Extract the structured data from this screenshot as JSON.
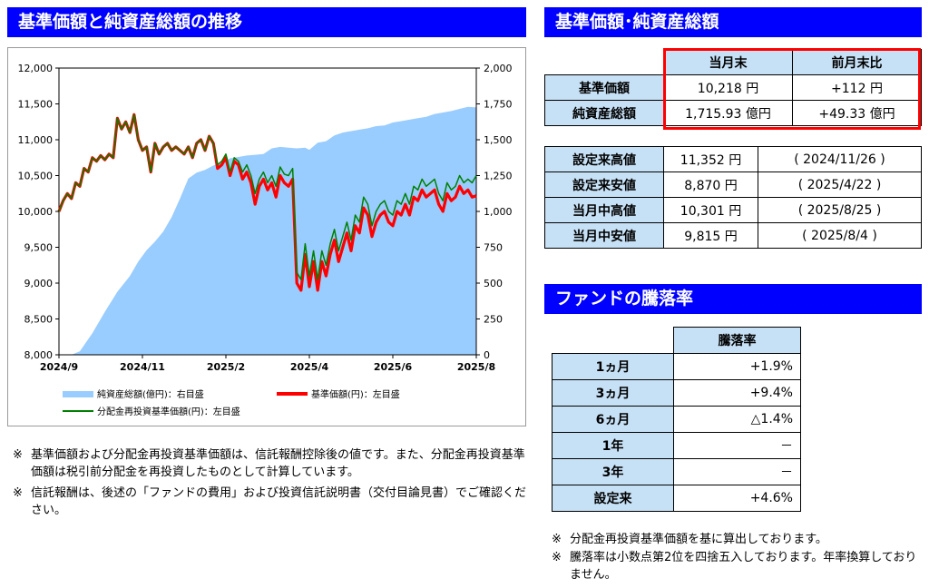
{
  "headers": {
    "chart": "基準価額と純資産総額の推移",
    "nav": "基準価額･純資産総額",
    "performance": "ファンドの騰落率"
  },
  "chart_data": {
    "type": "line",
    "x_tick_labels": [
      "2024/9",
      "2024/11",
      "2025/2",
      "2025/4",
      "2025/6",
      "2025/8"
    ],
    "y_left_ticks": [
      "12,000",
      "11,500",
      "11,000",
      "10,500",
      "10,000",
      "9,500",
      "9,000",
      "8,500",
      "8,000"
    ],
    "y_right_ticks": [
      "2,000",
      "1,750",
      "1,500",
      "1,250",
      "1,000",
      "750",
      "500",
      "250",
      "0"
    ],
    "y_left_range": [
      8000,
      12000
    ],
    "y_right_range": [
      0,
      2000
    ],
    "legend": {
      "assets": "純資産総額(億円)：右目盛",
      "nav": "基準価額(円)：左目盛",
      "reinvested": "分配金再投資基準価額(円)：左目盛"
    },
    "colors": {
      "assets": "#99ccff",
      "nav": "#ff0000",
      "reinvested": "#008000",
      "overlap": "#8b3a1a"
    },
    "series": [
      {
        "key": "assets",
        "x": [
          0,
          0.03,
          0.05,
          0.08,
          0.11,
          0.14,
          0.17,
          0.19,
          0.21,
          0.23,
          0.25,
          0.27,
          0.29,
          0.31,
          0.33,
          0.35,
          0.37,
          0.39,
          0.41,
          0.43,
          0.45,
          0.47,
          0.49,
          0.51,
          0.53,
          0.55,
          0.57,
          0.59,
          0.6,
          0.62,
          0.64,
          0.66,
          0.68,
          0.7,
          0.72,
          0.74,
          0.76,
          0.78,
          0.8,
          0.82,
          0.84,
          0.86,
          0.88,
          0.9,
          0.92,
          0.94,
          0.96,
          0.98,
          1
        ],
        "values": [
          0,
          0,
          25,
          150,
          300,
          440,
          550,
          650,
          730,
          790,
          860,
          960,
          1090,
          1230,
          1270,
          1290,
          1320,
          1340,
          1370,
          1380,
          1390,
          1395,
          1400,
          1440,
          1450,
          1445,
          1440,
          1445,
          1430,
          1480,
          1490,
          1530,
          1550,
          1560,
          1570,
          1580,
          1595,
          1600,
          1620,
          1630,
          1640,
          1650,
          1660,
          1680,
          1690,
          1700,
          1715,
          1730,
          1725
        ]
      },
      {
        "key": "nav",
        "x": [
          0,
          0.01,
          0.02,
          0.03,
          0.04,
          0.05,
          0.06,
          0.07,
          0.08,
          0.09,
          0.1,
          0.11,
          0.12,
          0.13,
          0.14,
          0.15,
          0.16,
          0.17,
          0.18,
          0.19,
          0.2,
          0.21,
          0.22,
          0.23,
          0.24,
          0.25,
          0.26,
          0.27,
          0.28,
          0.29,
          0.3,
          0.31,
          0.32,
          0.33,
          0.34,
          0.35,
          0.36,
          0.37,
          0.38,
          0.39,
          0.4,
          0.41,
          0.42,
          0.43,
          0.44,
          0.45,
          0.46,
          0.47,
          0.48,
          0.49,
          0.5,
          0.51,
          0.52,
          0.53,
          0.54,
          0.55,
          0.56,
          0.57,
          0.58,
          0.59,
          0.6,
          0.61,
          0.62,
          0.63,
          0.64,
          0.65,
          0.66,
          0.67,
          0.68,
          0.69,
          0.7,
          0.71,
          0.72,
          0.73,
          0.74,
          0.75,
          0.76,
          0.77,
          0.78,
          0.79,
          0.8,
          0.81,
          0.82,
          0.83,
          0.84,
          0.85,
          0.86,
          0.87,
          0.88,
          0.89,
          0.9,
          0.91,
          0.92,
          0.93,
          0.94,
          0.95,
          0.96,
          0.97,
          0.98,
          0.99,
          1
        ],
        "values": [
          10000,
          10150,
          10250,
          10180,
          10400,
          10350,
          10600,
          10550,
          10750,
          10700,
          10780,
          10720,
          10800,
          10750,
          11300,
          11150,
          11250,
          11100,
          11350,
          11000,
          10850,
          10900,
          10550,
          10950,
          10800,
          10900,
          10950,
          10850,
          10900,
          10850,
          10800,
          10900,
          10750,
          10950,
          11000,
          10850,
          11050,
          10950,
          10600,
          10650,
          10750,
          10500,
          10700,
          10650,
          10450,
          10550,
          10400,
          10100,
          10350,
          10450,
          10300,
          10400,
          10200,
          10500,
          10400,
          10350,
          10450,
          9000,
          8900,
          9400,
          8950,
          9300,
          8900,
          9300,
          9100,
          9400,
          9600,
          9300,
          9500,
          9700,
          9450,
          9800,
          9700,
          10050,
          9950,
          9650,
          9850,
          9950,
          10000,
          9850,
          9800,
          10000,
          9950,
          10100,
          9950,
          10200,
          10150,
          10300,
          10200,
          10250,
          10300,
          10100,
          10000,
          10250,
          10150,
          10200,
          10350,
          10250,
          10300,
          10200,
          10218
        ]
      },
      {
        "key": "reinvested",
        "x": [
          0,
          0.01,
          0.02,
          0.03,
          0.04,
          0.05,
          0.06,
          0.07,
          0.08,
          0.09,
          0.1,
          0.11,
          0.12,
          0.13,
          0.14,
          0.15,
          0.16,
          0.17,
          0.18,
          0.19,
          0.2,
          0.21,
          0.22,
          0.23,
          0.24,
          0.25,
          0.26,
          0.27,
          0.28,
          0.29,
          0.3,
          0.31,
          0.32,
          0.33,
          0.34,
          0.35,
          0.36,
          0.37,
          0.38,
          0.39,
          0.4,
          0.41,
          0.42,
          0.43,
          0.44,
          0.45,
          0.46,
          0.47,
          0.48,
          0.49,
          0.5,
          0.51,
          0.52,
          0.53,
          0.54,
          0.55,
          0.56,
          0.57,
          0.58,
          0.59,
          0.6,
          0.61,
          0.62,
          0.63,
          0.64,
          0.65,
          0.66,
          0.67,
          0.68,
          0.69,
          0.7,
          0.71,
          0.72,
          0.73,
          0.74,
          0.75,
          0.76,
          0.77,
          0.78,
          0.79,
          0.8,
          0.81,
          0.82,
          0.83,
          0.84,
          0.85,
          0.86,
          0.87,
          0.88,
          0.89,
          0.9,
          0.91,
          0.92,
          0.93,
          0.94,
          0.95,
          0.96,
          0.97,
          0.98,
          0.99,
          1
        ],
        "values": [
          10000,
          10150,
          10250,
          10180,
          10400,
          10350,
          10600,
          10550,
          10750,
          10700,
          10780,
          10720,
          10800,
          10750,
          11300,
          11150,
          11250,
          11100,
          11350,
          11000,
          10850,
          10900,
          10550,
          10950,
          10800,
          10900,
          10950,
          10850,
          10900,
          10850,
          10800,
          10900,
          10750,
          10950,
          11000,
          10850,
          11050,
          10950,
          10650,
          10700,
          10800,
          10550,
          10750,
          10700,
          10550,
          10650,
          10500,
          10250,
          10450,
          10550,
          10400,
          10500,
          10350,
          10620,
          10520,
          10500,
          10600,
          9150,
          9050,
          9550,
          9100,
          9450,
          9050,
          9450,
          9250,
          9550,
          9750,
          9450,
          9650,
          9850,
          9600,
          9950,
          9850,
          10200,
          10100,
          9800,
          10000,
          10100,
          10150,
          10000,
          9950,
          10150,
          10100,
          10250,
          10100,
          10350,
          10300,
          10450,
          10350,
          10400,
          10450,
          10250,
          10150,
          10400,
          10300,
          10350,
          10500,
          10400,
          10450,
          10400,
          10500
        ]
      }
    ]
  },
  "nav_table": {
    "col1": "当月末",
    "col2": "前月末比",
    "rows": [
      {
        "label": "基準価額",
        "value": "10,218 円",
        "change": "+112 円"
      },
      {
        "label": "純資産総額",
        "value": "1,715.93 億円",
        "change": "+49.33 億円"
      }
    ]
  },
  "stats_table": {
    "rows": [
      {
        "label": "設定来高値",
        "value": "11,352 円",
        "date": "( 2024/11/26 )"
      },
      {
        "label": "設定来安値",
        "value": "8,870 円",
        "date": "( 2025/4/22 )"
      },
      {
        "label": "当月中高値",
        "value": "10,301 円",
        "date": "( 2025/8/25 )"
      },
      {
        "label": "当月中安値",
        "value": "9,815 円",
        "date": "( 2025/8/4 )"
      }
    ]
  },
  "perf_table": {
    "header": "騰落率",
    "rows": [
      {
        "label": "1ヵ月",
        "value": "+1.9%"
      },
      {
        "label": "3ヵ月",
        "value": "+9.4%"
      },
      {
        "label": "6ヵ月",
        "value": "△1.4%"
      },
      {
        "label": "1年",
        "value": "－"
      },
      {
        "label": "3年",
        "value": "－"
      },
      {
        "label": "設定来",
        "value": "+4.6%"
      }
    ]
  },
  "notes_left": {
    "mark": "※",
    "items": [
      "基準価額および分配金再投資基準価額は、信託報酬控除後の値です。また、分配金再投資基準価額は税引前分配金を再投資したものとして計算しています。",
      "信託報酬は、後述の「ファンドの費用」および投資信託説明書（交付目論見書）でご確認ください。"
    ]
  },
  "notes_right": {
    "mark": "※",
    "items": [
      "分配金再投資基準価額を基に算出しております。",
      "騰落率は小数点第2位を四捨五入しております。年率換算しておりません。"
    ]
  }
}
